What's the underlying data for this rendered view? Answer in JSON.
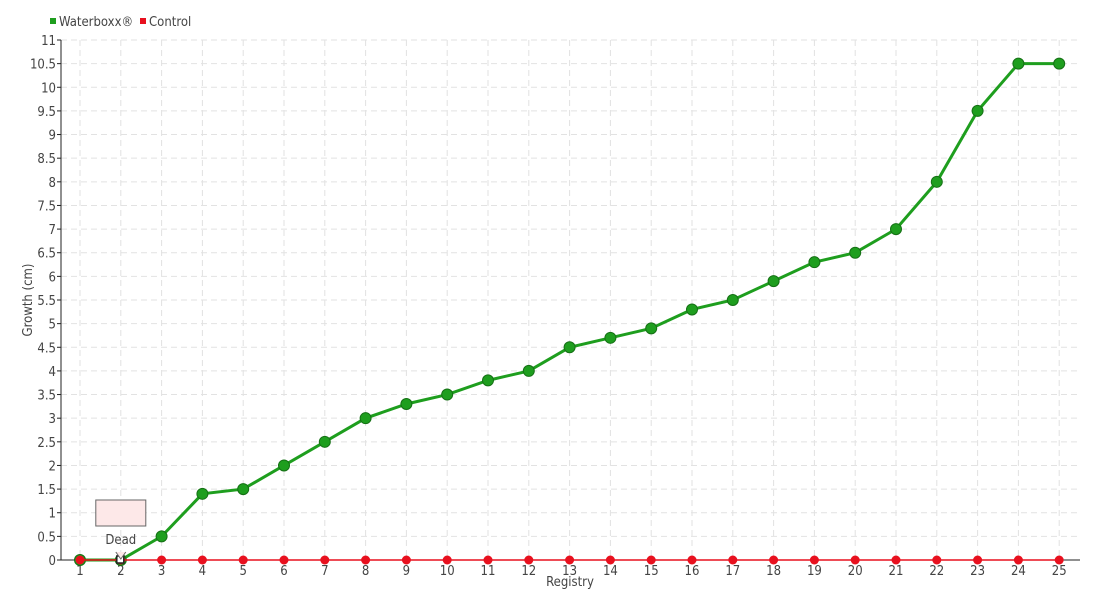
{
  "chart_data": {
    "type": "line",
    "title": "",
    "xlabel": "Registry",
    "ylabel": "Growth (cm)",
    "x": [
      1,
      2,
      3,
      4,
      5,
      6,
      7,
      8,
      9,
      10,
      11,
      12,
      13,
      14,
      15,
      16,
      17,
      18,
      19,
      20,
      21,
      22,
      23,
      24,
      25
    ],
    "ylim": [
      0,
      11
    ],
    "yticks": [
      0,
      0.5,
      1,
      1.5,
      2,
      2.5,
      3,
      3.5,
      4,
      4.5,
      5,
      5.5,
      6,
      6.5,
      7,
      7.5,
      8,
      8.5,
      9,
      9.5,
      10,
      10.5,
      11
    ],
    "grid": true,
    "legend_position": "top-left",
    "series": [
      {
        "name": "Waterboxx®",
        "color": "#1e9e1e",
        "values": [
          0,
          0,
          0.5,
          1.4,
          1.5,
          2,
          2.5,
          3,
          3.3,
          3.5,
          3.8,
          4,
          4.5,
          4.7,
          4.9,
          5.3,
          5.5,
          5.9,
          6.3,
          6.5,
          7,
          8,
          9.5,
          10.5,
          10.5
        ]
      },
      {
        "name": "Control",
        "color": "#e8101e",
        "values": [
          0,
          0,
          0,
          0,
          0,
          0,
          0,
          0,
          0,
          0,
          0,
          0,
          0,
          0,
          0,
          0,
          0,
          0,
          0,
          0,
          0,
          0,
          0,
          0,
          0
        ]
      }
    ],
    "annotations": [
      {
        "x": 2,
        "series": "Control",
        "text": "Dead"
      }
    ]
  }
}
